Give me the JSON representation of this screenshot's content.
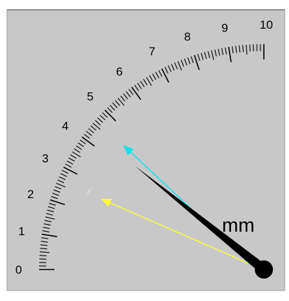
{
  "gauge": {
    "unit": "mm",
    "scale_labels": [
      "0",
      "1",
      "2",
      "3",
      "4",
      "5",
      "6",
      "7",
      "8",
      "9",
      "10"
    ],
    "scale_min": 0,
    "scale_max": 10,
    "needle_value": 4.3,
    "cyan_marker_value": 4.6,
    "yellow_marker_value": 2.6,
    "colors": {
      "dial_face": "#c8c8c8",
      "frame_border": "#a0a0a0",
      "ticks": "#000000",
      "needle": "#000000",
      "cyan_marker": "#00e5ee",
      "yellow_marker": "#ffff33",
      "ghost_tick_area": "#e8e8e8"
    }
  }
}
